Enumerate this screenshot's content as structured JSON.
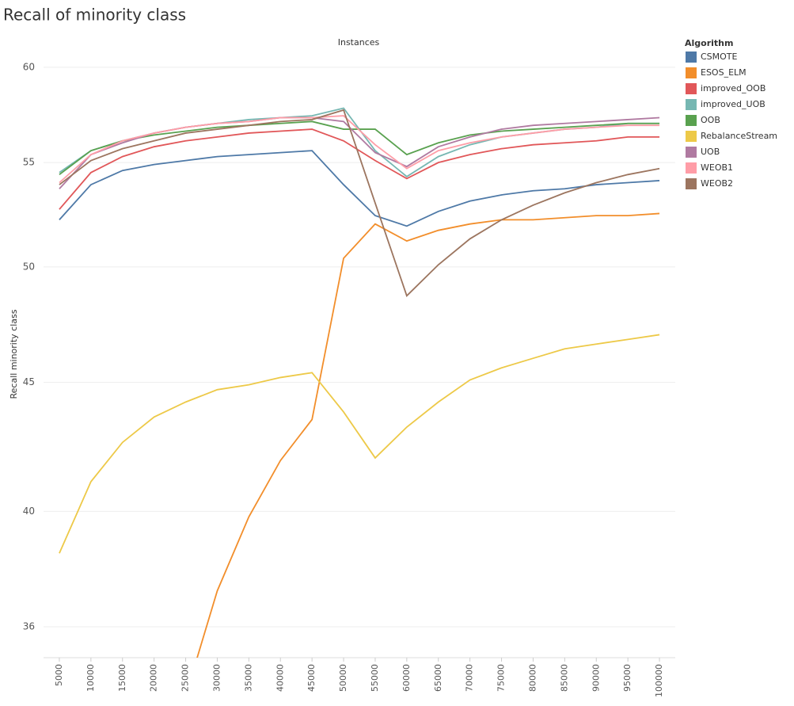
{
  "chart_data": {
    "type": "line",
    "title": "Recall of minority class",
    "x_label": "Instances",
    "y_label": "Recall minority class",
    "legend_title": "Algorithm",
    "yscale": "log",
    "grid": true,
    "legend": "right",
    "x": [
      5000,
      10000,
      15000,
      20000,
      25000,
      30000,
      35000,
      40000,
      45000,
      50000,
      55000,
      60000,
      65000,
      70000,
      75000,
      80000,
      85000,
      90000,
      95000,
      100000
    ],
    "xlim": [
      2500,
      102500
    ],
    "xticks": [
      5000,
      10000,
      15000,
      20000,
      25000,
      30000,
      35000,
      40000,
      45000,
      50000,
      55000,
      60000,
      65000,
      70000,
      75000,
      80000,
      85000,
      90000,
      95000,
      100000
    ],
    "ylim": [
      35,
      61
    ],
    "yticks": [
      36,
      40,
      45,
      50,
      55,
      60
    ],
    "series": [
      {
        "name": "CSMOTE",
        "color": "#4e79a7",
        "values": [
          52.2,
          53.9,
          54.6,
          54.9,
          55.1,
          55.3,
          55.4,
          55.5,
          55.6,
          53.9,
          52.4,
          51.9,
          52.6,
          53.1,
          53.4,
          53.6,
          53.7,
          53.9,
          54.0,
          54.1
        ]
      },
      {
        "name": "ESOS_ELM",
        "color": "#f28e2b",
        "values": [
          null,
          null,
          null,
          null,
          33.8,
          37.2,
          39.8,
          41.9,
          43.5,
          50.4,
          52.0,
          51.2,
          51.7,
          52.0,
          52.2,
          52.2,
          52.3,
          52.4,
          52.4,
          52.5
        ]
      },
      {
        "name": "improved_OOB",
        "color": "#e15759",
        "values": [
          52.7,
          54.5,
          55.3,
          55.8,
          56.1,
          56.3,
          56.5,
          56.6,
          56.7,
          56.1,
          55.1,
          54.2,
          55.0,
          55.4,
          55.7,
          55.9,
          56.0,
          56.1,
          56.3,
          56.3
        ]
      },
      {
        "name": "improved_UOB",
        "color": "#76b7b2",
        "values": [
          54.5,
          55.6,
          56.1,
          56.5,
          56.8,
          57.0,
          57.2,
          57.3,
          57.4,
          57.8,
          55.6,
          54.3,
          55.3,
          55.9,
          56.3,
          56.5,
          56.7,
          56.8,
          57.0,
          57.0
        ]
      },
      {
        "name": "OOB",
        "color": "#59a14f",
        "values": [
          54.4,
          55.6,
          56.1,
          56.4,
          56.6,
          56.8,
          56.9,
          57.0,
          57.1,
          56.7,
          56.7,
          55.4,
          56.0,
          56.4,
          56.6,
          56.7,
          56.8,
          56.9,
          57.0,
          57.0
        ]
      },
      {
        "name": "RebalanceStream",
        "color": "#edc948",
        "values": [
          38.5,
          41.1,
          42.6,
          43.6,
          44.2,
          44.7,
          44.9,
          45.2,
          45.4,
          43.8,
          42.0,
          43.2,
          44.2,
          45.1,
          45.6,
          46.0,
          46.4,
          46.6,
          46.8,
          47.0
        ]
      },
      {
        "name": "UOB",
        "color": "#b07aa1",
        "values": [
          53.7,
          55.4,
          56.0,
          56.5,
          56.8,
          57.0,
          57.1,
          57.3,
          57.3,
          57.1,
          55.5,
          54.8,
          55.8,
          56.3,
          56.7,
          56.9,
          57.0,
          57.1,
          57.2,
          57.3
        ]
      },
      {
        "name": "WEOB1",
        "color": "#ff9da7",
        "values": [
          54.0,
          55.4,
          56.1,
          56.5,
          56.8,
          57.0,
          57.1,
          57.3,
          57.3,
          57.4,
          55.9,
          54.7,
          55.6,
          56.0,
          56.3,
          56.5,
          56.7,
          56.8,
          56.9,
          56.9
        ]
      },
      {
        "name": "WEOB2",
        "color": "#9c755f",
        "values": [
          53.9,
          55.1,
          55.7,
          56.1,
          56.5,
          56.7,
          56.9,
          57.1,
          57.2,
          57.7,
          53.0,
          48.7,
          50.1,
          51.3,
          52.2,
          52.9,
          53.5,
          54.0,
          54.4,
          54.7
        ]
      }
    ]
  }
}
